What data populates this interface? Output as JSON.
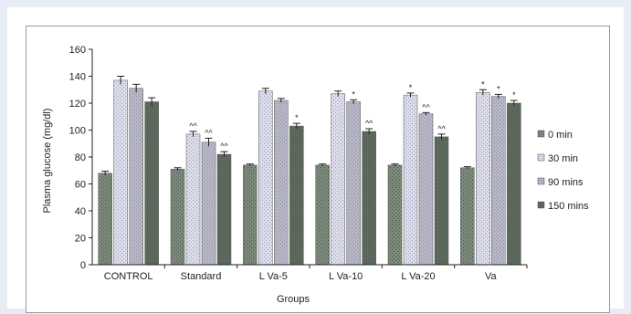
{
  "chart_data": {
    "type": "bar",
    "xlabel": "Groups",
    "ylabel": "Plasma glucose (mg/dl)",
    "ylim": [
      0,
      160
    ],
    "yticks": [
      0,
      20,
      40,
      60,
      80,
      100,
      120,
      140,
      160
    ],
    "categories": [
      "CONTROL",
      "Standard",
      "L Va-5",
      "L Va-10",
      "L Va-20",
      "Va"
    ],
    "legend_position": "right",
    "series": [
      {
        "name": "0 min",
        "color": "#7b8a7b",
        "values": [
          68,
          71,
          74,
          74,
          74,
          72
        ],
        "errors": [
          1.5,
          1,
          0.8,
          0.8,
          0.8,
          0.8
        ],
        "annotations": [
          "",
          "",
          "",
          "",
          "",
          ""
        ]
      },
      {
        "name": "30 min",
        "color": "#dcdcea",
        "values": [
          137,
          97,
          129,
          127,
          126,
          128
        ],
        "errors": [
          3,
          2,
          2,
          2,
          1.5,
          2
        ],
        "annotations": [
          "",
          "^^",
          "",
          "",
          "*",
          "*"
        ]
      },
      {
        "name": "90 mins",
        "color": "#b7b7c7",
        "values": [
          131,
          91,
          122,
          121,
          112,
          125
        ],
        "errors": [
          3,
          3,
          1.5,
          1.5,
          1,
          1.5
        ],
        "annotations": [
          "",
          "^^",
          "",
          "*",
          "^^",
          "*"
        ]
      },
      {
        "name": "150 mins",
        "color": "#5e6a5e",
        "values": [
          121,
          82,
          103,
          99,
          95,
          120
        ],
        "errors": [
          3,
          2,
          2,
          2,
          2,
          2
        ],
        "annotations": [
          "",
          "^^",
          "*",
          "^^",
          "^^",
          "*"
        ]
      }
    ]
  }
}
